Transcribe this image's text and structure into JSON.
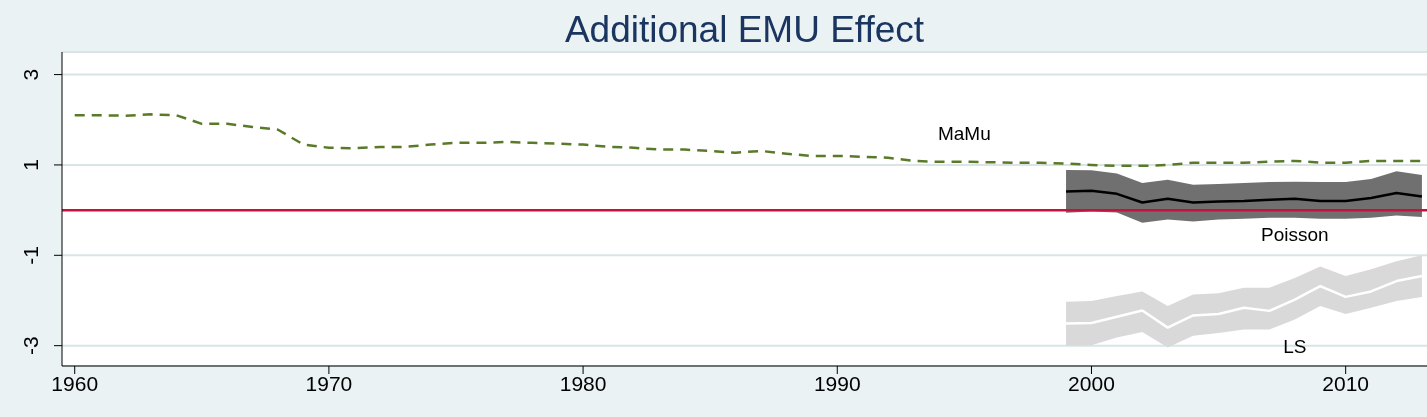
{
  "chart_data": {
    "type": "line",
    "title": "Additional EMU Effect",
    "xlim": [
      1959.5,
      2013.2
    ],
    "xticks": [
      1960,
      1970,
      1980,
      1990,
      2000,
      2010
    ],
    "ylim": [
      -3.45,
      3.5
    ],
    "yticks": [
      -3,
      -1,
      1,
      3
    ],
    "grid": "y",
    "legend": false,
    "marker": "none",
    "ref_lines": [
      {
        "axis": "y",
        "value": 0,
        "color": "#c8103e",
        "line_style": "solid"
      }
    ],
    "series": [
      {
        "name": "MaMu",
        "color": "#5a7a2a",
        "line_style": "dashed",
        "x": [
          1960,
          1961,
          1962,
          1963,
          1964,
          1965,
          1966,
          1967,
          1968,
          1969,
          1970,
          1971,
          1972,
          1973,
          1974,
          1975,
          1976,
          1977,
          1978,
          1979,
          1980,
          1981,
          1982,
          1983,
          1984,
          1985,
          1986,
          1987,
          1988,
          1989,
          1990,
          1991,
          1992,
          1993,
          1994,
          1995,
          1996,
          1997,
          1998,
          1999,
          2000,
          2001,
          2002,
          2003,
          2004,
          2005,
          2006,
          2007,
          2008,
          2009,
          2010,
          2011,
          2012,
          2013
        ],
        "values": [
          2.1,
          2.1,
          2.09,
          2.12,
          2.1,
          1.91,
          1.91,
          1.84,
          1.78,
          1.45,
          1.38,
          1.37,
          1.4,
          1.4,
          1.45,
          1.49,
          1.49,
          1.51,
          1.49,
          1.47,
          1.45,
          1.4,
          1.38,
          1.34,
          1.34,
          1.31,
          1.27,
          1.31,
          1.25,
          1.2,
          1.2,
          1.18,
          1.16,
          1.09,
          1.07,
          1.07,
          1.06,
          1.05,
          1.05,
          1.03,
          1.0,
          0.98,
          0.98,
          1.0,
          1.05,
          1.05,
          1.05,
          1.07,
          1.09,
          1.05,
          1.05,
          1.09,
          1.09,
          1.09
        ]
      },
      {
        "name": "Poisson",
        "color": "#000000",
        "line_style": "solid",
        "x": [
          1999,
          2000,
          2001,
          2002,
          2003,
          2004,
          2005,
          2006,
          2007,
          2008,
          2009,
          2010,
          2011,
          2012,
          2013
        ],
        "values": [
          0.41,
          0.43,
          0.36,
          0.17,
          0.25,
          0.17,
          0.19,
          0.2,
          0.23,
          0.25,
          0.2,
          0.2,
          0.27,
          0.38,
          0.3
        ],
        "lower": [
          -0.06,
          -0.03,
          -0.05,
          -0.28,
          -0.21,
          -0.25,
          -0.21,
          -0.19,
          -0.17,
          -0.17,
          -0.19,
          -0.19,
          -0.17,
          -0.12,
          -0.15
        ],
        "upper": [
          0.89,
          0.88,
          0.81,
          0.6,
          0.67,
          0.56,
          0.58,
          0.6,
          0.62,
          0.63,
          0.62,
          0.62,
          0.69,
          0.86,
          0.78
        ]
      },
      {
        "name": "LS",
        "color": "#ffffff",
        "line_style": "solid",
        "x": [
          1999,
          2000,
          2001,
          2002,
          2003,
          2004,
          2005,
          2006,
          2007,
          2008,
          2009,
          2010,
          2011,
          2012,
          2013
        ],
        "values": [
          -2.51,
          -2.5,
          -2.36,
          -2.22,
          -2.6,
          -2.33,
          -2.3,
          -2.16,
          -2.23,
          -1.98,
          -1.68,
          -1.92,
          -1.8,
          -1.57,
          -1.46
        ],
        "lower": [
          -3.0,
          -2.99,
          -2.82,
          -2.7,
          -3.04,
          -2.78,
          -2.72,
          -2.64,
          -2.64,
          -2.42,
          -2.12,
          -2.3,
          -2.16,
          -2.01,
          -1.92
        ],
        "upper": [
          -2.03,
          -2.01,
          -1.9,
          -1.8,
          -2.12,
          -1.87,
          -1.84,
          -1.72,
          -1.72,
          -1.5,
          -1.25,
          -1.46,
          -1.31,
          -1.13,
          -1.0
        ]
      }
    ]
  }
}
